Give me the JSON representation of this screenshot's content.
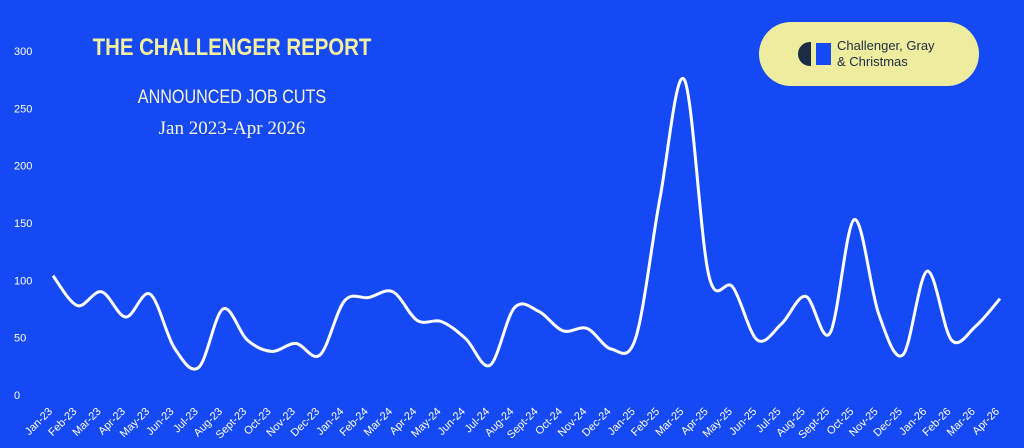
{
  "chart_data": {
    "type": "line",
    "title": "THE CHALLENGER REPORT",
    "subtitle": "ANNOUNCED JOB CUTS",
    "period": "Jan 2023-Apr 2026",
    "categories": [
      "Jan-23",
      "Feb-23",
      "Mar-23",
      "Apr-23",
      "May-23",
      "Jun-23",
      "Jul-23",
      "Aug-23",
      "Sept-23",
      "Oct-23",
      "Nov-23",
      "Dec-23",
      "Jan-24",
      "Feb-24",
      "Mar-24",
      "Apr-24",
      "May-24",
      "Jun-24",
      "Jul-24",
      "Aug-24",
      "Sept-24",
      "Oct-24",
      "Nov-24",
      "Dec-24",
      "Jan-25",
      "Feb-25",
      "Mar-25",
      "Apr-25",
      "May-25",
      "Jun-25",
      "Jul-25",
      "Aug-25",
      "Sept-25",
      "Oct-25",
      "Nov-25",
      "Dec-25",
      "Jan-26",
      "Feb-26",
      "Mar-26",
      "Apr-26"
    ],
    "values": [
      104,
      78,
      90,
      68,
      88,
      41,
      24,
      75,
      48,
      38,
      45,
      35,
      82,
      85,
      90,
      65,
      64,
      49,
      26,
      76,
      73,
      56,
      58,
      40,
      50,
      172,
      275,
      105,
      94,
      48,
      62,
      86,
      54,
      153,
      71,
      35,
      108,
      48,
      60,
      84
    ],
    "color": "#ffffff",
    "ylim": [
      0,
      300
    ],
    "yticks": [
      0,
      50,
      100,
      150,
      200,
      250,
      300
    ]
  },
  "logo": {
    "lines": [
      "Challenger, Gray",
      "& Christmas"
    ]
  }
}
